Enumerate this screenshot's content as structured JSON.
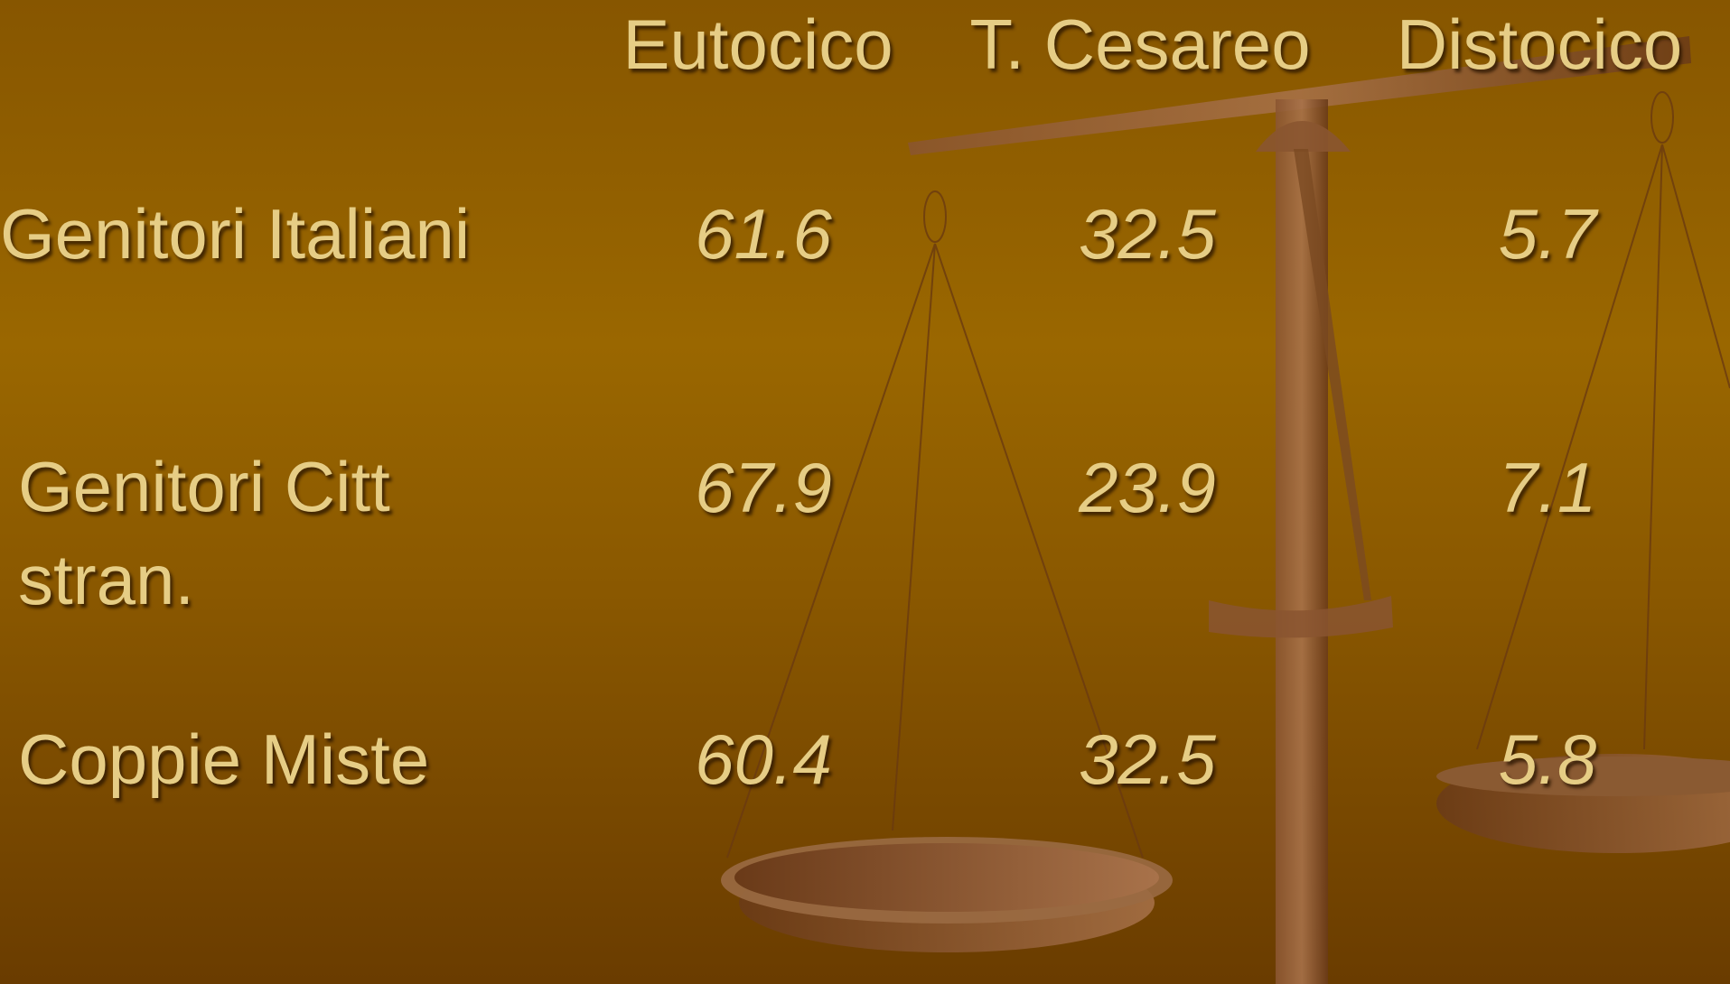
{
  "table": {
    "header": [
      "Eutocico",
      "T. Cesareo",
      "Distocico"
    ],
    "rows": [
      [
        "Genitori Italiani",
        "61.6",
        "32.5",
        "5.7"
      ],
      [
        "Genitori Citt stran.",
        "67.9",
        "23.9",
        "7.1"
      ],
      [
        "Coppie Miste",
        "60.4",
        "32.5",
        "5.8"
      ]
    ]
  }
}
